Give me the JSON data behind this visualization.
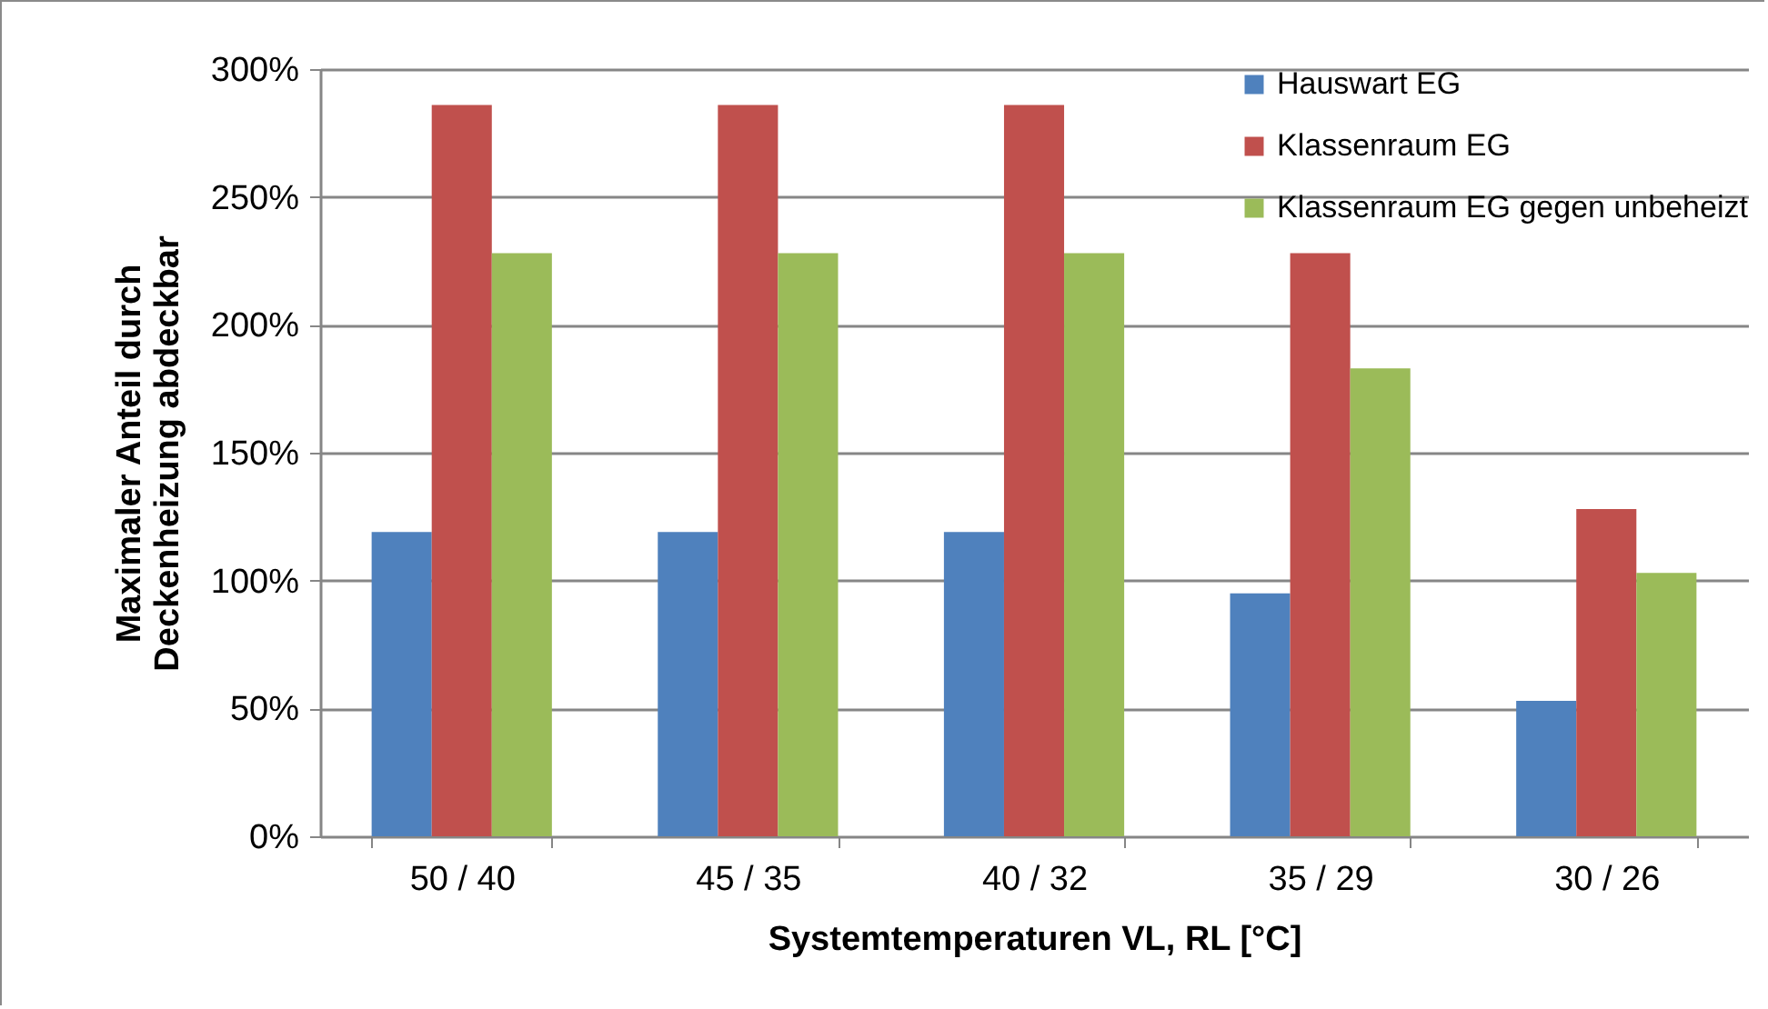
{
  "chart_data": {
    "type": "bar",
    "xlabel": "Systemtemperaturen VL, RL [°C]",
    "ylabel": "Maximaler Anteil durch\nDeckenheizung abdeckbar",
    "categories": [
      "50 / 40",
      "45 / 35",
      "40 / 32",
      "35 / 29",
      "30 / 26"
    ],
    "series": [
      {
        "name": "Hauswart EG",
        "color": "#4f81bd",
        "values": [
          119,
          119,
          119,
          95,
          53
        ]
      },
      {
        "name": "Klassenraum EG",
        "color": "#c0504d",
        "values": [
          286,
          286,
          286,
          228,
          128
        ]
      },
      {
        "name": "Klassenraum EG gegen unbeheizt",
        "color": "#9bbb59",
        "values": [
          228,
          228,
          228,
          183,
          103
        ]
      }
    ],
    "ylim": [
      0,
      300
    ],
    "yticks": [
      {
        "value": 0,
        "label": "0%"
      },
      {
        "value": 50,
        "label": "50%"
      },
      {
        "value": 100,
        "label": "100%"
      },
      {
        "value": 150,
        "label": "150%"
      },
      {
        "value": 200,
        "label": "200%"
      },
      {
        "value": 250,
        "label": "250%"
      },
      {
        "value": 300,
        "label": "300%"
      }
    ],
    "grid": "y",
    "legend": "top right"
  }
}
